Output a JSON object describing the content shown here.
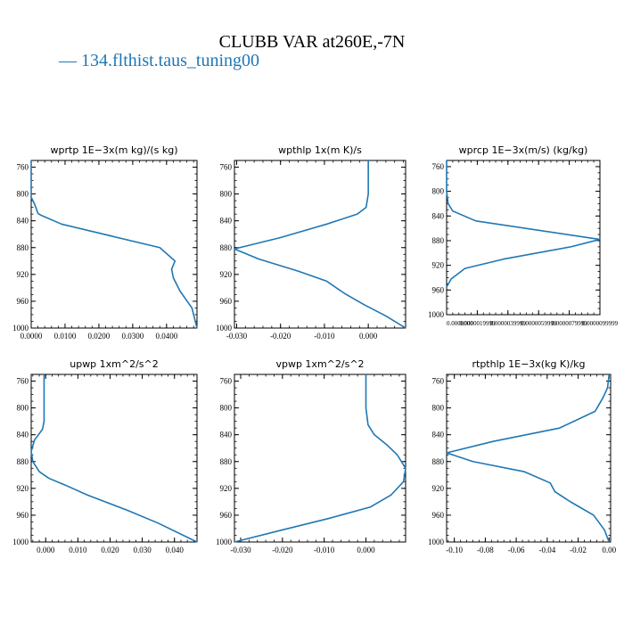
{
  "title": "CLUBB VAR at260E,-7N",
  "legend": {
    "label": "134.flthist.taus_tuning00",
    "color": "#1f77b4"
  },
  "chart_data": [
    {
      "type": "line",
      "title": "wprtp   1E−3x(m kg)/(s kg)",
      "xlim": [
        0.0,
        0.049
      ],
      "ylim": [
        1000,
        750
      ],
      "x_ticks": [
        0.0,
        0.01,
        0.02,
        0.03,
        0.04
      ],
      "x_tick_labels": [
        "0.0000",
        "0.0100",
        "0.0200",
        "0.0300",
        "0.0400"
      ],
      "y_ticks": [
        760,
        800,
        840,
        880,
        920,
        960,
        1000
      ],
      "series": [
        {
          "color": "#1f77b4",
          "points": [
            [
              0.0,
              750
            ],
            [
              0.0,
              805
            ],
            [
              0.001,
              815
            ],
            [
              0.002,
              829
            ],
            [
              0.003,
              832
            ],
            [
              0.009,
              845
            ],
            [
              0.038,
              880
            ],
            [
              0.0425,
              900
            ],
            [
              0.0415,
              912
            ],
            [
              0.042,
              925
            ],
            [
              0.044,
              945
            ],
            [
              0.0475,
              970
            ],
            [
              0.049,
              1000
            ]
          ]
        }
      ]
    },
    {
      "type": "line",
      "title": "wpthlp   1x(m K)/s",
      "xlim": [
        -0.0305,
        0.0085
      ],
      "ylim": [
        1000,
        750
      ],
      "x_ticks": [
        -0.03,
        -0.02,
        -0.01,
        0.0
      ],
      "x_tick_labels": [
        "-0.030",
        "-0.020",
        "-0.010",
        "0.000"
      ],
      "y_ticks": [
        760,
        800,
        840,
        880,
        920,
        960,
        1000
      ],
      "series": [
        {
          "color": "#1f77b4",
          "points": [
            [
              0.0,
              750
            ],
            [
              0.0,
              800
            ],
            [
              -0.0005,
              820
            ],
            [
              -0.0025,
              830
            ],
            [
              -0.0095,
              845
            ],
            [
              -0.02,
              865
            ],
            [
              -0.0305,
              882
            ],
            [
              -0.025,
              897
            ],
            [
              -0.016,
              915
            ],
            [
              -0.0095,
              930
            ],
            [
              -0.0055,
              948
            ],
            [
              -0.001,
              965
            ],
            [
              0.004,
              982
            ],
            [
              0.0085,
              1000
            ]
          ]
        }
      ]
    },
    {
      "type": "line",
      "title": "wprcp   1E−3x(m/s) (kg/kg)",
      "xlim": [
        0.0,
        9.9999e-06
      ],
      "ylim": [
        1000,
        750
      ],
      "x_ticks": [
        0.0,
        1.9999e-06,
        3.9999e-06,
        5.9999e-06,
        7.9999e-06,
        9.9999e-06
      ],
      "x_tick_labels": [
        "0.0000000",
        "0.0000019999",
        "0.0000039999",
        "0.0000059999",
        "0.0000079999",
        "0.0000099999"
      ],
      "y_ticks": [
        760,
        800,
        840,
        880,
        920,
        960,
        1000
      ],
      "series": [
        {
          "color": "#1f77b4",
          "points": [
            [
              0.0,
              750
            ],
            [
              0.0,
              800
            ],
            [
              1e-07,
              820
            ],
            [
              4e-07,
              832
            ],
            [
              1.9e-06,
              848
            ],
            [
              9.9999e-06,
              878
            ],
            [
              8.1e-06,
              890
            ],
            [
              3.7e-06,
              910
            ],
            [
              1.2e-06,
              925
            ],
            [
              3e-07,
              942
            ],
            [
              0.0,
              955
            ]
          ]
        }
      ]
    },
    {
      "type": "line",
      "title": "upwp   1xm^2/s^2",
      "xlim": [
        -0.0045,
        0.047
      ],
      "ylim": [
        1000,
        750
      ],
      "x_ticks": [
        0.0,
        0.01,
        0.02,
        0.03,
        0.04
      ],
      "x_tick_labels": [
        "0.000",
        "0.010",
        "0.020",
        "0.030",
        "0.040"
      ],
      "y_ticks": [
        760,
        800,
        840,
        880,
        920,
        960,
        1000
      ],
      "series": [
        {
          "color": "#1f77b4",
          "points": [
            [
              -0.0005,
              750
            ],
            [
              -0.0005,
              820
            ],
            [
              -0.001,
              832
            ],
            [
              -0.0035,
              848
            ],
            [
              -0.0045,
              865
            ],
            [
              -0.004,
              880
            ],
            [
              -0.002,
              895
            ],
            [
              0.001,
              905
            ],
            [
              0.006,
              915
            ],
            [
              0.013,
              930
            ],
            [
              0.025,
              952
            ],
            [
              0.035,
              972
            ],
            [
              0.047,
              1000
            ]
          ]
        }
      ]
    },
    {
      "type": "line",
      "title": "vpwp   1xm^2/s^2",
      "xlim": [
        -0.0315,
        0.0095
      ],
      "ylim": [
        1000,
        750
      ],
      "x_ticks": [
        -0.03,
        -0.02,
        -0.01,
        0.0
      ],
      "x_tick_labels": [
        "-0.030",
        "-0.020",
        "-0.010",
        "0.000"
      ],
      "y_ticks": [
        760,
        800,
        840,
        880,
        920,
        960,
        1000
      ],
      "series": [
        {
          "color": "#1f77b4",
          "points": [
            [
              0.0,
              750
            ],
            [
              0.0,
              800
            ],
            [
              0.0005,
              825
            ],
            [
              0.002,
              840
            ],
            [
              0.005,
              855
            ],
            [
              0.0075,
              870
            ],
            [
              0.0095,
              890
            ],
            [
              0.009,
              910
            ],
            [
              0.006,
              930
            ],
            [
              0.001,
              948
            ],
            [
              -0.009,
              965
            ],
            [
              -0.02,
              982
            ],
            [
              -0.0315,
              1000
            ]
          ]
        }
      ]
    },
    {
      "type": "line",
      "title": "rtpthlp   1E−3x(kg K)/kg",
      "xlim": [
        -0.105,
        0.001
      ],
      "ylim": [
        1000,
        750
      ],
      "x_ticks": [
        -0.1,
        -0.08,
        -0.06,
        -0.04,
        -0.02,
        0.0
      ],
      "x_tick_labels": [
        "-0.10",
        "-0.08",
        "-0.06",
        "-0.04",
        "-0.02",
        "0.00"
      ],
      "y_ticks": [
        760,
        800,
        840,
        880,
        920,
        960,
        1000
      ],
      "series": [
        {
          "color": "#1f77b4",
          "points": [
            [
              0.0,
              750
            ],
            [
              -0.001,
              770
            ],
            [
              -0.004,
              785
            ],
            [
              -0.009,
              805
            ],
            [
              -0.032,
              830
            ],
            [
              -0.075,
              850
            ],
            [
              -0.105,
              867
            ],
            [
              -0.088,
              880
            ],
            [
              -0.055,
              895
            ],
            [
              -0.038,
              912
            ],
            [
              -0.035,
              925
            ],
            [
              -0.025,
              940
            ],
            [
              -0.01,
              960
            ],
            [
              -0.003,
              982
            ],
            [
              0.0,
              1000
            ]
          ]
        }
      ]
    }
  ]
}
